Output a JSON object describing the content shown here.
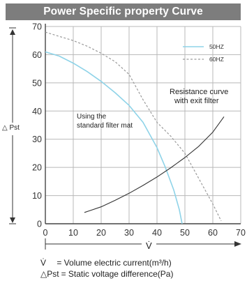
{
  "title": "Power Specific property Curve",
  "chart_data": {
    "type": "line",
    "xlim": [
      0,
      70
    ],
    "ylim": [
      0,
      70
    ],
    "x_ticks": [
      "0",
      "10",
      "20",
      "30",
      "40",
      "50",
      "60",
      "70"
    ],
    "y_ticks": [
      "0",
      "10",
      "20",
      "30",
      "40",
      "50",
      "60",
      "70"
    ],
    "xlabel": "V̇",
    "ylabel": "△ Pst",
    "grid": true,
    "legend_position": "top-right",
    "colors": {
      "hz50": "#8ed3e8",
      "hz60": "#9a9a9a",
      "resistance": "#333333",
      "grid": "#b8b8b8"
    },
    "series": [
      {
        "name": "50HZ",
        "style": "solid",
        "x": [
          0,
          5,
          10,
          15,
          20,
          25,
          30,
          35,
          40,
          43,
          46,
          48,
          49
        ],
        "y": [
          61,
          59.5,
          57,
          54,
          50.5,
          46.5,
          42,
          36,
          27,
          20,
          12,
          5,
          0
        ]
      },
      {
        "name": "60HZ",
        "style": "dashed",
        "x": [
          0,
          5,
          10,
          15,
          20,
          25,
          30,
          35,
          40,
          45,
          50,
          55,
          60,
          63
        ],
        "y": [
          68,
          66.5,
          65,
          63,
          60.5,
          57.5,
          53,
          44,
          36,
          31,
          25,
          16,
          7,
          1
        ]
      },
      {
        "name": "",
        "style": "solid",
        "x": [
          14,
          20,
          25,
          30,
          35,
          40,
          45,
          50,
          55,
          60,
          64
        ],
        "y": [
          4,
          6,
          8.3,
          10.8,
          13.6,
          16.6,
          19.9,
          23.5,
          27.5,
          32.5,
          38
        ]
      }
    ],
    "annotations": {
      "resistance_line1": "Resistance curve",
      "resistance_line2": "with exit filter",
      "filter_line1": "Using the",
      "filter_line2": "standard filter mat"
    }
  },
  "definitions": [
    {
      "symbol": "V̇",
      "text": "= Volume electric current(m³/h)"
    },
    {
      "symbol": "△Pst",
      "text": "= Static voltage difference(Pa)"
    }
  ]
}
